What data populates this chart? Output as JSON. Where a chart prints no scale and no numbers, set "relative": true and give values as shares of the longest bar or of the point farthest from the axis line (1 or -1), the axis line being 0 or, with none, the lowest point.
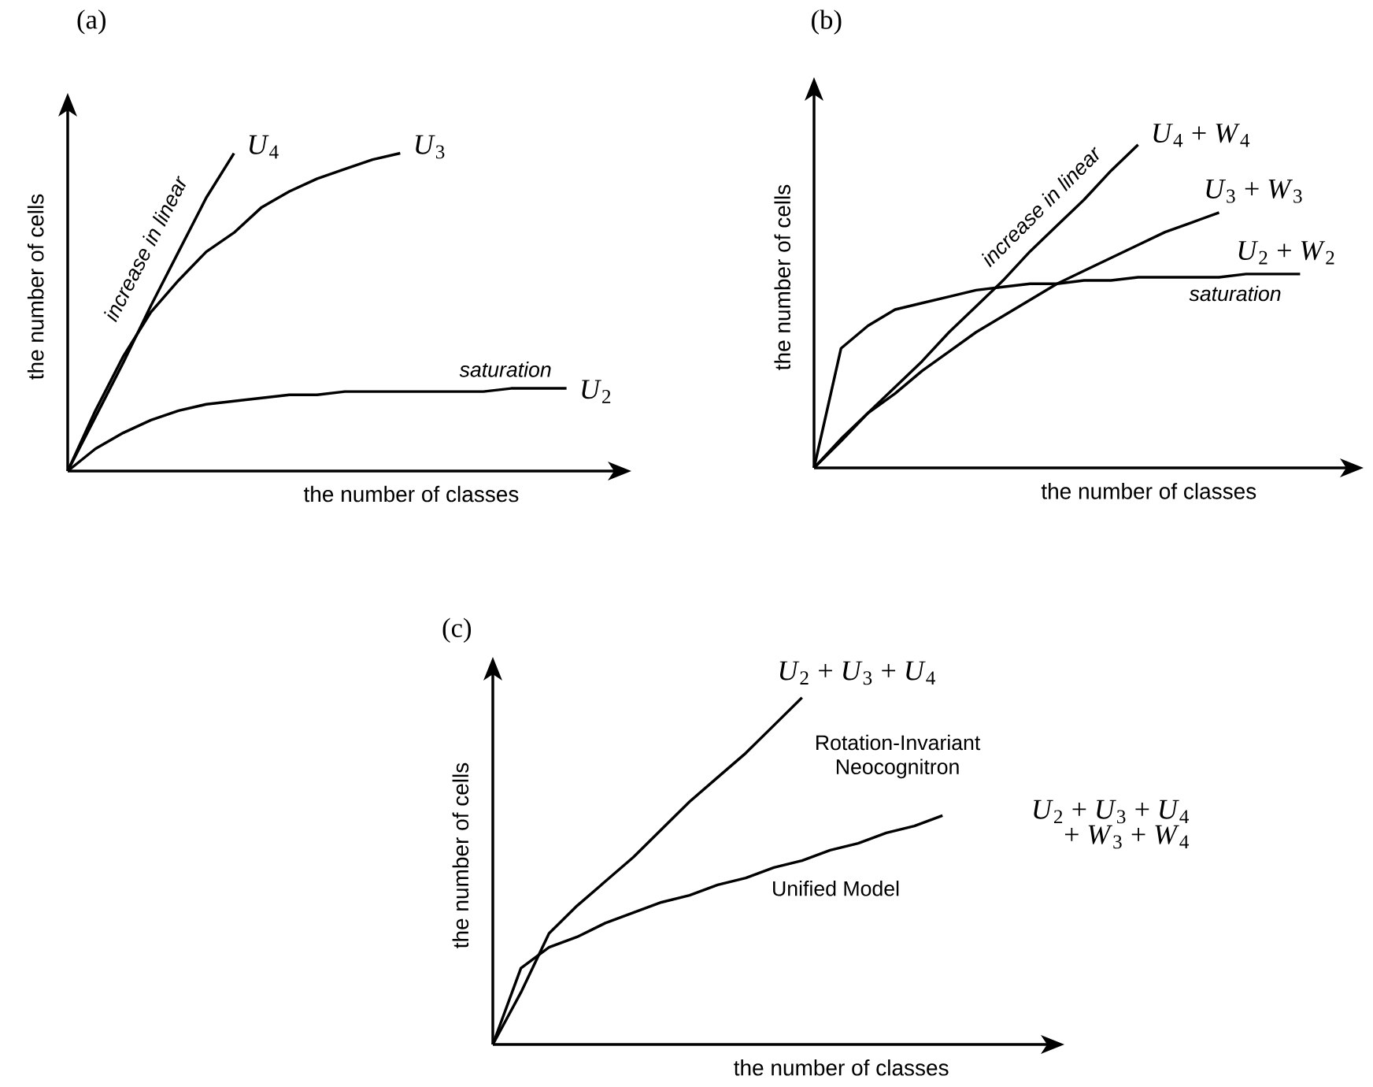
{
  "chart_data": [
    {
      "type": "line",
      "relative": true,
      "title": "(a)",
      "xlabel": "the number of classes",
      "ylabel": "the number of cells",
      "categories": [
        null,
        null,
        null,
        null,
        null,
        null,
        null,
        null,
        null,
        null,
        null,
        null,
        null,
        null,
        null,
        null,
        null,
        null,
        null
      ],
      "series": [
        {
          "name": "*U*$_{4}$",
          "color": "#000000",
          "values": [
            0,
            0.17,
            0.34,
            0.52,
            0.69,
            0.86,
            1.0,
            null,
            null,
            null,
            null,
            null,
            null,
            null,
            null,
            null,
            null,
            null,
            null
          ]
        },
        {
          "name": "*U*$_{3}$",
          "color": "#000000",
          "values": [
            0,
            0.19,
            0.36,
            0.5,
            0.6,
            0.69,
            0.75,
            0.83,
            0.88,
            0.92,
            0.95,
            0.98,
            1.0,
            null,
            null,
            null,
            null,
            null,
            null
          ]
        },
        {
          "name": "*U*$_{2}$",
          "color": "#000000",
          "values": [
            0,
            0.07,
            0.12,
            0.16,
            0.19,
            0.21,
            0.22,
            0.23,
            0.24,
            0.24,
            0.25,
            0.25,
            0.25,
            0.25,
            0.25,
            0.25,
            0.26,
            0.26,
            0.26
          ]
        }
      ],
      "annotations": [
        "increase in linear",
        "saturation"
      ]
    },
    {
      "type": "line",
      "relative": true,
      "title": "(b)",
      "xlabel": "the number of classes",
      "ylabel": "the number of cells",
      "categories": [
        null,
        null,
        null,
        null,
        null,
        null,
        null,
        null,
        null,
        null,
        null,
        null,
        null,
        null,
        null,
        null,
        null,
        null,
        null
      ],
      "series": [
        {
          "name": "*U*$_{4}$ + *W*$_{4}$",
          "color": "#000000",
          "values": [
            0,
            0.083,
            0.17,
            0.25,
            0.33,
            0.42,
            0.5,
            0.58,
            0.67,
            0.75,
            0.83,
            0.92,
            1.0,
            null,
            null,
            null,
            null,
            null,
            null
          ]
        },
        {
          "name": "*U*$_{3}$ + *W*$_{3}$",
          "color": "#000000",
          "values": [
            0,
            0.09,
            0.17,
            0.23,
            0.3,
            0.36,
            0.42,
            0.47,
            0.52,
            0.57,
            0.61,
            0.65,
            0.69,
            0.73,
            0.76,
            0.79,
            null,
            null,
            null
          ]
        },
        {
          "name": "*U*$_{2}$ + *W*$_{2}$",
          "color": "#000000",
          "values": [
            0,
            0.37,
            0.44,
            0.49,
            0.51,
            0.53,
            0.55,
            0.56,
            0.57,
            0.57,
            0.58,
            0.58,
            0.59,
            0.59,
            0.59,
            0.59,
            0.6,
            0.6,
            0.6
          ]
        }
      ],
      "annotations": [
        "increase in linear",
        "saturation"
      ]
    },
    {
      "type": "line",
      "relative": true,
      "title": "(c)",
      "xlabel": "the number of classes",
      "ylabel": "the number of cells",
      "categories": [
        null,
        null,
        null,
        null,
        null,
        null,
        null,
        null,
        null,
        null,
        null,
        null,
        null,
        null,
        null,
        null,
        null
      ],
      "series": [
        {
          "name": "*U*$_{2}$ + *U*$_{3}$ + *U*$_{4}$",
          "color": "#000000",
          "values": [
            0,
            0.15,
            0.32,
            0.4,
            0.47,
            0.54,
            0.62,
            0.7,
            0.77,
            0.84,
            0.92,
            1.0,
            null,
            null,
            null,
            null,
            null
          ]
        },
        {
          "name": "*U*$_{2}$ + *U*$_{3}$ + *U*$_{4}$ + *W*$_{3}$ + *W*$_{4}$",
          "color": "#000000",
          "values": [
            0,
            0.22,
            0.28,
            0.31,
            0.35,
            0.38,
            0.41,
            0.43,
            0.46,
            0.48,
            0.51,
            0.53,
            0.56,
            0.58,
            0.61,
            0.63,
            0.66
          ]
        }
      ],
      "annotations": [
        "Rotation-Invariant Neocognitron",
        "Unified Model"
      ]
    }
  ]
}
